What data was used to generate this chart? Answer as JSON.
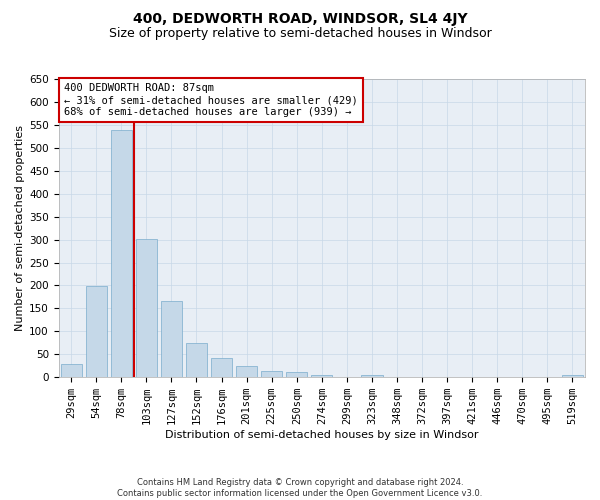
{
  "title": "400, DEDWORTH ROAD, WINDSOR, SL4 4JY",
  "subtitle": "Size of property relative to semi-detached houses in Windsor",
  "xlabel": "Distribution of semi-detached houses by size in Windsor",
  "ylabel": "Number of semi-detached properties",
  "footer_line1": "Contains HM Land Registry data © Crown copyright and database right 2024.",
  "footer_line2": "Contains public sector information licensed under the Open Government Licence v3.0.",
  "categories": [
    "29sqm",
    "54sqm",
    "78sqm",
    "103sqm",
    "127sqm",
    "152sqm",
    "176sqm",
    "201sqm",
    "225sqm",
    "250sqm",
    "274sqm",
    "299sqm",
    "323sqm",
    "348sqm",
    "372sqm",
    "397sqm",
    "421sqm",
    "446sqm",
    "470sqm",
    "495sqm",
    "519sqm"
  ],
  "values": [
    28,
    199,
    538,
    302,
    167,
    74,
    41,
    25,
    14,
    12,
    5,
    0,
    5,
    0,
    0,
    0,
    0,
    0,
    0,
    0,
    5
  ],
  "bar_color": "#c5d8e8",
  "bar_edge_color": "#7aaccc",
  "vline_color": "#cc0000",
  "vline_x_index": 2,
  "annotation_box_text": "400 DEDWORTH ROAD: 87sqm\n← 31% of semi-detached houses are smaller (429)\n68% of semi-detached houses are larger (939) →",
  "annotation_box_color": "#cc0000",
  "annotation_box_bg": "#ffffff",
  "ylim": [
    0,
    650
  ],
  "yticks": [
    0,
    50,
    100,
    150,
    200,
    250,
    300,
    350,
    400,
    450,
    500,
    550,
    600,
    650
  ],
  "grid_color": "#c8d8e8",
  "background_color": "#ffffff",
  "plot_bg_color": "#e8eef5",
  "title_fontsize": 10,
  "subtitle_fontsize": 9,
  "axis_label_fontsize": 8,
  "tick_fontsize": 7.5,
  "annotation_fontsize": 7.5,
  "footer_fontsize": 6
}
